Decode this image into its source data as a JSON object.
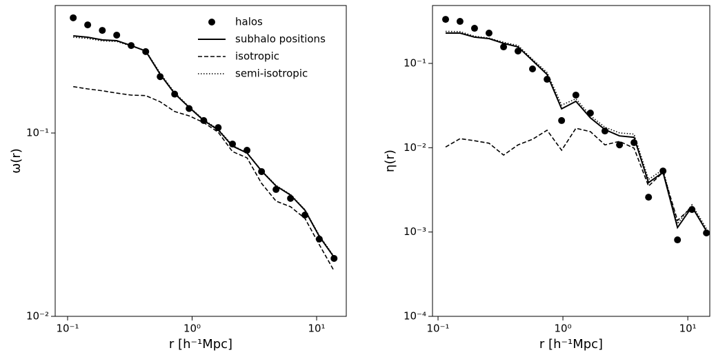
{
  "chart_data": [
    {
      "type": "line",
      "xlabel": "r [h⁻¹Mpc]",
      "ylabel": "ω(r)",
      "xscale": "log",
      "yscale": "log",
      "xlim": [
        0.0795,
        17.3
      ],
      "ylim": [
        0.01,
        0.496
      ],
      "xticks": [
        {
          "value": 0.1,
          "label": "10⁻¹"
        },
        {
          "value": 1,
          "label": "10⁰"
        },
        {
          "value": 10,
          "label": "10¹"
        }
      ],
      "yticks": [
        {
          "value": 0.01,
          "label": "10⁻²"
        },
        {
          "value": 0.1,
          "label": "10⁻¹"
        }
      ],
      "legend": "upper right",
      "x": [
        0.111,
        0.145,
        0.19,
        0.248,
        0.324,
        0.424,
        0.554,
        0.724,
        0.946,
        1.24,
        1.62,
        2.11,
        2.76,
        3.61,
        4.72,
        6.17,
        8.06,
        10.5,
        13.8
      ],
      "series": [
        {
          "name": "halos",
          "style": "markers",
          "color": "#000000",
          "values": [
            0.425,
            0.389,
            0.363,
            0.342,
            0.3,
            0.278,
            0.203,
            0.163,
            0.136,
            0.117,
            0.107,
            0.0871,
            0.0805,
            0.0616,
            0.0492,
            0.044,
            0.0357,
            0.0264,
            0.0207
          ]
        },
        {
          "name": "subhalo positions",
          "style": "solid",
          "color": "#000000",
          "values": [
            0.339,
            0.333,
            0.322,
            0.319,
            0.3,
            0.28,
            0.209,
            0.164,
            0.138,
            0.117,
            0.104,
            0.0849,
            0.0778,
            0.0621,
            0.0514,
            0.0459,
            0.0379,
            0.0273,
            0.021
          ]
        },
        {
          "name": "isotropic",
          "style": "dashed",
          "color": "#000000",
          "values": [
            0.179,
            0.174,
            0.17,
            0.165,
            0.161,
            0.16,
            0.148,
            0.131,
            0.124,
            0.114,
            0.101,
            0.0792,
            0.0732,
            0.0532,
            0.0425,
            0.0396,
            0.0342,
            0.0246,
            0.0177
          ]
        },
        {
          "name": "semi-isotropic",
          "style": "dotted",
          "color": "#000000",
          "values": [
            0.333,
            0.328,
            0.318,
            0.316,
            0.298,
            0.282,
            0.212,
            0.166,
            0.139,
            0.118,
            0.105,
            0.0855,
            0.078,
            0.0625,
            0.0518,
            0.0462,
            0.0382,
            0.0276,
            0.0212
          ]
        }
      ]
    },
    {
      "type": "line",
      "xlabel": "r [h⁻¹Mpc]",
      "ylabel": "η(r)",
      "xscale": "log",
      "yscale": "log",
      "xlim": [
        0.0903,
        15.0
      ],
      "ylim": [
        0.0001,
        0.486
      ],
      "xticks": [
        {
          "value": 0.1,
          "label": "10⁻¹"
        },
        {
          "value": 1,
          "label": "10⁰"
        },
        {
          "value": 10,
          "label": "10¹"
        }
      ],
      "yticks": [
        {
          "value": 0.0001,
          "label": "10⁻⁴"
        },
        {
          "value": 0.001,
          "label": "10⁻³"
        },
        {
          "value": 0.01,
          "label": "10⁻²"
        },
        {
          "value": 0.1,
          "label": "10⁻¹"
        }
      ],
      "x": [
        0.115,
        0.15,
        0.196,
        0.256,
        0.335,
        0.437,
        0.571,
        0.747,
        0.976,
        1.27,
        1.66,
        2.17,
        2.84,
        3.71,
        4.85,
        6.33,
        8.27,
        10.8,
        14.1
      ],
      "series": [
        {
          "name": "halos",
          "style": "markers",
          "color": "#000000",
          "values": [
            0.333,
            0.315,
            0.261,
            0.229,
            0.157,
            0.14,
            0.086,
            0.0648,
            0.021,
            0.0421,
            0.0258,
            0.0158,
            0.0108,
            0.0115,
            0.00259,
            0.0053,
            0.000807,
            0.00185,
            0.000975
          ]
        },
        {
          "name": "subhalo positions",
          "style": "solid",
          "color": "#000000",
          "values": [
            0.229,
            0.229,
            0.205,
            0.197,
            0.173,
            0.157,
            0.108,
            0.074,
            0.0289,
            0.0355,
            0.0226,
            0.0164,
            0.0138,
            0.0133,
            0.00385,
            0.00511,
            0.00113,
            0.00199,
            0.00103
          ]
        },
        {
          "name": "isotropic",
          "style": "dashed",
          "color": "#000000",
          "values": [
            0.0102,
            0.0128,
            0.0121,
            0.0113,
            0.00818,
            0.0108,
            0.0126,
            0.0161,
            0.00933,
            0.017,
            0.0155,
            0.0108,
            0.0119,
            0.00987,
            0.00351,
            0.00511,
            0.00137,
            0.00199,
            0.00103
          ]
        },
        {
          "name": "semi-isotropic",
          "style": "dotted",
          "color": "#000000",
          "values": [
            0.24,
            0.238,
            0.21,
            0.2,
            0.178,
            0.163,
            0.112,
            0.078,
            0.032,
            0.038,
            0.024,
            0.0175,
            0.015,
            0.0145,
            0.0042,
            0.0055,
            0.00125,
            0.0021,
            0.0011
          ]
        }
      ]
    }
  ]
}
